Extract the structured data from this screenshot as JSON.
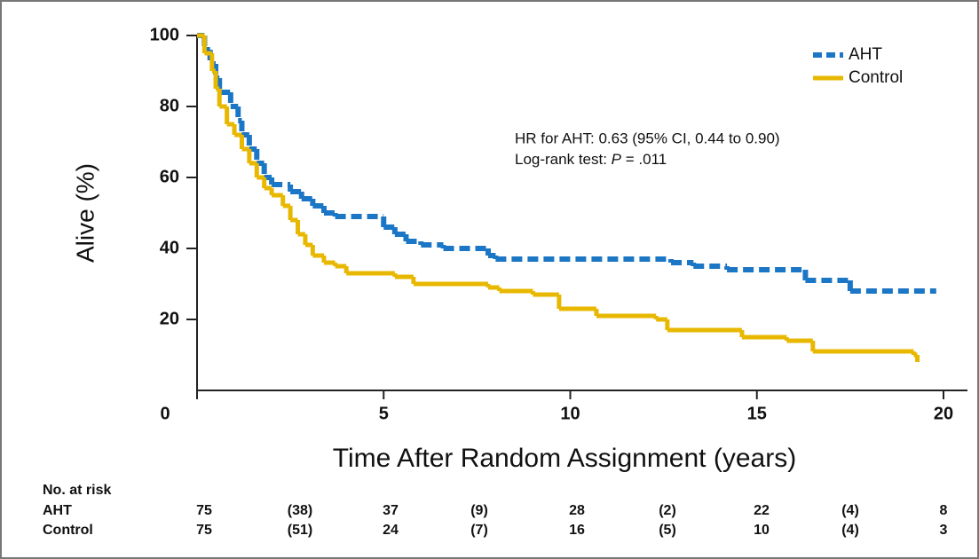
{
  "chart_data": {
    "type": "step",
    "x_label": "Time After Random Assignment (years)",
    "y_label": "Alive (%)",
    "annotations": [
      "HR for AHT: 0.63 (95% CI, 0.44 to 0.90)",
      [
        "Log-rank test: ",
        "P",
        " = .011"
      ]
    ],
    "xlim": [
      0,
      20
    ],
    "ylim": [
      0,
      100
    ],
    "xticks": [
      0,
      5,
      10,
      15,
      20
    ],
    "yticks": [
      20,
      40,
      60,
      80,
      100
    ],
    "legend": "top-right",
    "series": [
      {
        "name": "AHT",
        "color": "#1b76c6",
        "dashed": true,
        "x": [
          0,
          0.2,
          0.35,
          0.5,
          0.6,
          0.9,
          1.1,
          1.2,
          1.4,
          1.6,
          1.8,
          2.0,
          2.5,
          2.8,
          3.1,
          3.4,
          3.7,
          5.0,
          5.3,
          5.6,
          6.0,
          6.6,
          7.8,
          8.0,
          12.7,
          13.3,
          14.2,
          16.3,
          17.5,
          19.8
        ],
        "values": [
          100,
          96,
          92,
          88,
          84,
          80,
          76,
          72,
          68,
          64,
          60,
          58,
          56,
          54,
          52,
          50,
          49,
          46,
          44,
          42,
          41,
          40,
          38,
          37,
          36,
          35,
          34,
          31,
          28,
          28
        ]
      },
      {
        "name": "Control",
        "color": "#e8b800",
        "dashed": false,
        "x": [
          0,
          0.2,
          0.4,
          0.5,
          0.6,
          0.8,
          1.0,
          1.2,
          1.4,
          1.6,
          1.8,
          2.0,
          2.3,
          2.5,
          2.7,
          2.9,
          3.1,
          3.4,
          3.7,
          4.0,
          5.3,
          5.8,
          7.8,
          8.1,
          9.0,
          9.7,
          10.7,
          12.3,
          12.6,
          14.6,
          15.8,
          16.5,
          19.2,
          19.3
        ],
        "values": [
          100,
          95,
          90,
          85,
          80,
          75,
          72,
          68,
          64,
          60,
          57,
          55,
          52,
          48,
          44,
          41,
          38,
          36,
          35,
          33,
          32,
          30,
          29,
          28,
          27,
          23,
          21,
          20,
          17,
          15,
          14,
          11,
          10,
          8
        ]
      }
    ]
  },
  "risk_table": {
    "title": "No. at risk",
    "rows": [
      [
        "AHT",
        "75",
        "(38)",
        "37",
        "(9)",
        "28",
        "(2)",
        "22",
        "(4)",
        "8"
      ],
      [
        "Control",
        "75",
        "(51)",
        "24",
        "(7)",
        "16",
        "(5)",
        "10",
        "(4)",
        "3"
      ]
    ]
  }
}
